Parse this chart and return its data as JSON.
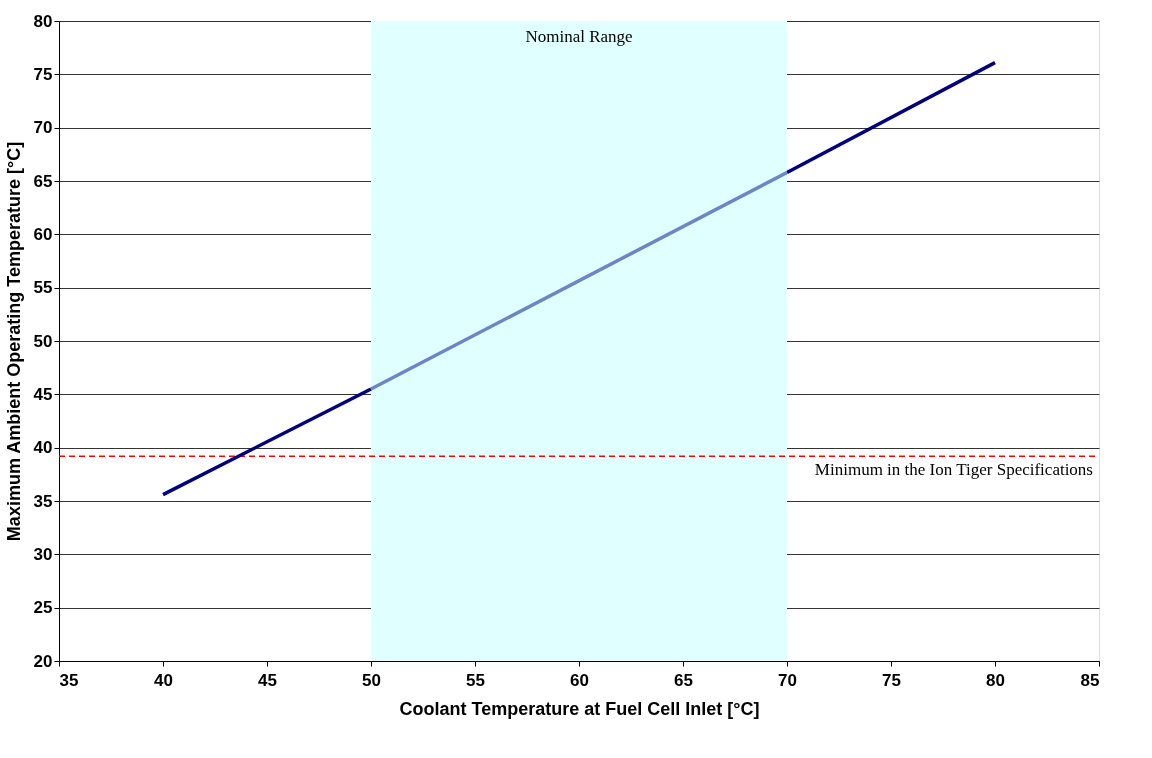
{
  "chart_data": {
    "type": "line",
    "xlabel": "Coolant Temperature at Fuel Cell Inlet [°C]",
    "ylabel": "Maximum Ambient Operating Temperature [°C]",
    "series": [
      {
        "color": "#000080",
        "x": [
          40,
          50,
          60,
          70,
          80
        ],
        "values": [
          35.6,
          45.5,
          null,
          65.8,
          76.1
        ]
      },
      {
        "color": "#6b86c6",
        "x": [
          50,
          70
        ],
        "values": [
          45.5,
          65.8
        ]
      }
    ],
    "xlim": [
      35,
      85
    ],
    "xticks": [
      35,
      40,
      45,
      50,
      55,
      60,
      65,
      70,
      75,
      80,
      85
    ],
    "ylim": [
      20,
      80
    ],
    "yticks": [
      20,
      25,
      30,
      35,
      40,
      45,
      50,
      55,
      60,
      65,
      70,
      75,
      80
    ],
    "grid": "y",
    "marker": "none",
    "line_style": "solid",
    "ref_lines": [
      {
        "axis": "y",
        "value": 39.2,
        "label": "Minimum in the Ion Tiger Specifications",
        "color": "#ff0000",
        "line_style": "dashed"
      }
    ],
    "bands": [
      {
        "axis": "x",
        "from": 50,
        "to": 70,
        "label": "Nominal Range",
        "color": "#e0ffff"
      }
    ]
  }
}
